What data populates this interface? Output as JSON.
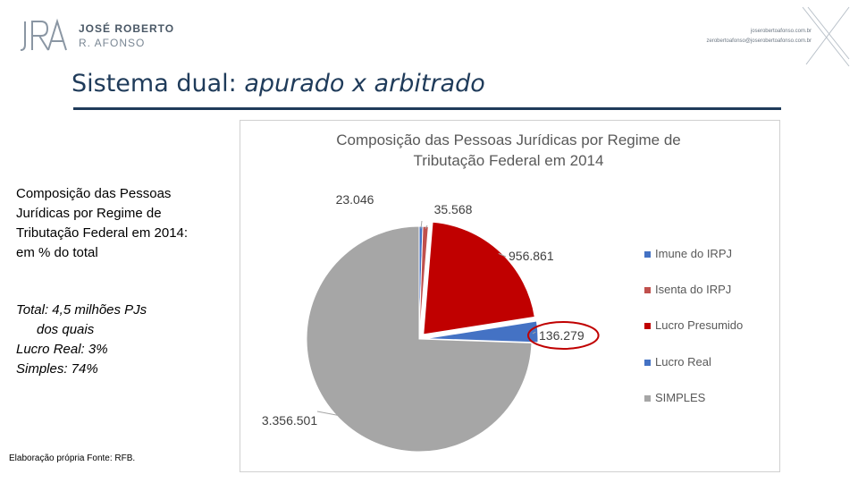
{
  "header": {
    "brand_line1": "JOSÉ ROBERTO",
    "brand_line2": "R. AFONSO",
    "contact_line1": "joserobertoafonso.com.br",
    "contact_line2": "zerobertoafonso@joserobertoafonso.com.br"
  },
  "slide_title": {
    "regular": "Sistema dual: ",
    "italic": "apurado x arbitrado"
  },
  "side_text": {
    "title_lines": [
      "Composição das Pessoas",
      "Jurídicas por Regime de",
      "Tributação Federal em 2014:",
      "em % do total"
    ],
    "note_lines": [
      "Total: 4,5 milhões PJs",
      "dos quais",
      "Lucro Real: 3%",
      "Simples: 74%"
    ],
    "source": "Elaboração própria Fonte: RFB."
  },
  "colors": {
    "title": "#1f3b5a",
    "highlight_circle": "#c00000"
  },
  "chart_data": {
    "type": "pie",
    "title": "Composição das Pessoas Jurídicas por Regime de Tributação Federal em 2014",
    "title_lines": [
      "Composição das Pessoas Jurídicas por Regime de",
      "Tributação Federal em 2014"
    ],
    "slices": [
      {
        "label": "Imune do IRPJ",
        "value": 23046,
        "data_label": "23.046",
        "color": "#4472c4"
      },
      {
        "label": "Isenta do IRPJ",
        "value": 35568,
        "data_label": "35.568",
        "color": "#c0504d"
      },
      {
        "label": "Lucro Presumido",
        "value": 956861,
        "data_label": "956.861",
        "color": "#c00000"
      },
      {
        "label": "Lucro Real",
        "value": 136279,
        "data_label": "136.279",
        "color": "#4472c4"
      },
      {
        "label": "SIMPLES",
        "value": 3356501,
        "data_label": "3.356.501",
        "color": "#a6a6a6"
      }
    ],
    "exploded_slices": [
      "Lucro Presumido",
      "Lucro Real"
    ],
    "highlighted_label": "Lucro Real",
    "legend_position": "right"
  }
}
